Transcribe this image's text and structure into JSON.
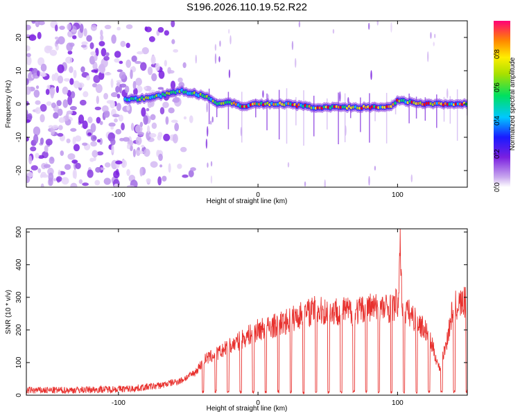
{
  "title": "S196.2026.110.19.52.R22",
  "chart_data": [
    {
      "type": "heatmap",
      "title": "S196.2026.110.19.52.R22",
      "xlabel": "Height of straight line (km)",
      "ylabel": "Frequency (Hz)",
      "xlim": [
        -166,
        150
      ],
      "ylim": [
        -25,
        25
      ],
      "xticks": [
        -100,
        0,
        100
      ],
      "xtick_labels": [
        "-100",
        "0",
        "100"
      ],
      "yticks": [
        20,
        10,
        0,
        -10,
        -20
      ],
      "ytick_labels": [
        "20",
        "10",
        "0",
        "-10",
        "-20"
      ],
      "colorbar": {
        "label": "Normalized spectral amplitude",
        "range": [
          0,
          1
        ],
        "ticks": [
          0.0,
          0.2,
          0.4,
          0.6,
          0.8
        ],
        "tick_labels": [
          "0.0",
          "0.2",
          "0.4",
          "0.6",
          "0.8"
        ]
      },
      "ridge": {
        "x": [
          -95,
          -85,
          -70,
          -55,
          -45,
          -38,
          -30,
          -22,
          -15,
          -10,
          -5,
          0,
          20,
          40,
          60,
          80,
          95,
          100,
          120,
          150
        ],
        "y": [
          1.5,
          1.5,
          2.5,
          4,
          3,
          2.5,
          0,
          0.5,
          0,
          -1,
          0,
          0,
          0,
          -1,
          -1,
          -1,
          -1,
          1,
          0,
          0
        ]
      }
    },
    {
      "type": "line",
      "xlabel": "Height of straight line (km)",
      "ylabel": "SNR (10 * v/v)",
      "xlim": [
        -166,
        150
      ],
      "ylim": [
        0,
        510
      ],
      "xticks": [
        -100,
        0,
        100
      ],
      "xtick_labels": [
        "-100",
        "0",
        "100"
      ],
      "yticks": [
        0,
        100,
        200,
        300,
        400,
        500
      ],
      "ytick_labels": [
        "0",
        "100",
        "200",
        "300",
        "400",
        "500"
      ],
      "series": [
        {
          "name": "SNR",
          "color": "#e8312e",
          "x": [
            -166,
            -140,
            -110,
            -90,
            -70,
            -55,
            -45,
            -38,
            -30,
            -20,
            -10,
            0,
            10,
            20,
            30,
            40,
            50,
            60,
            70,
            80,
            90,
            97,
            101,
            102,
            103,
            106,
            110,
            120,
            125,
            130,
            135,
            140,
            145,
            150
          ],
          "values": [
            15,
            15,
            18,
            20,
            30,
            45,
            70,
            110,
            125,
            150,
            175,
            200,
            210,
            225,
            245,
            260,
            255,
            260,
            255,
            270,
            265,
            270,
            290,
            500,
            280,
            260,
            245,
            200,
            150,
            80,
            160,
            270,
            280,
            285
          ]
        }
      ]
    }
  ]
}
